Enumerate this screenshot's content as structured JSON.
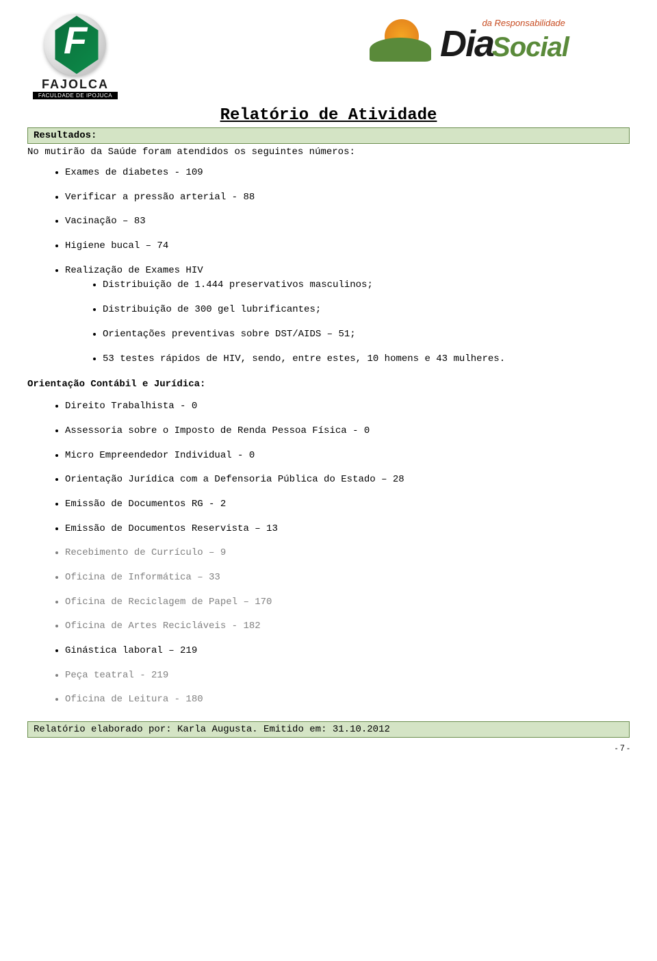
{
  "logos": {
    "fajolca_name": "FAJOLCA",
    "fajolca_sub": "FACULDADE DE IPOJUCA",
    "dia_top": "da Responsabilidade",
    "dia_main": "Dia",
    "dia_social": "Social"
  },
  "title": "Relatório de Atividade",
  "section_label": "Resultados:",
  "intro": "No mutirão da Saúde foram atendidos os seguintes números:",
  "saude_items": [
    "Exames de diabetes - 109",
    "Verificar a pressão arterial - 88",
    "Vacinação – 83",
    "Higiene bucal – 74",
    "Realização de Exames HIV"
  ],
  "hiv_sub": [
    "Distribuição de 1.444 preservativos masculinos;",
    "Distribuição de 300 gel lubrificantes;",
    "Orientações preventivas sobre DST/AIDS – 51;",
    "53 testes rápidos de HIV, sendo, entre estes, 10 homens e 43 mulheres."
  ],
  "sub_heading": "Orientação Contábil e Jurídica:",
  "second_list": [
    {
      "text": "Direito Trabalhista - 0",
      "gray": false
    },
    {
      "text": "Assessoria sobre o Imposto de Renda Pessoa Física - 0",
      "gray": false
    },
    {
      "text": "Micro Empreendedor Individual - 0",
      "gray": false
    },
    {
      "text": "Orientação Jurídica com a Defensoria Pública do Estado – 28",
      "gray": false
    },
    {
      "text": "Emissão de Documentos RG - 2",
      "gray": false
    },
    {
      "text": "Emissão de Documentos Reservista – 13",
      "gray": false
    },
    {
      "text": "Recebimento de Currículo – 9",
      "gray": true
    },
    {
      "text": "Oficina de Informática – 33",
      "gray": true
    },
    {
      "text": "Oficina de Reciclagem de Papel – 170",
      "gray": true
    },
    {
      "text": "Oficina de Artes Recicláveis - 182",
      "gray": true
    },
    {
      "text": "Ginástica laboral – 219",
      "gray": false
    },
    {
      "text": "Peça teatral - 219",
      "gray": true
    },
    {
      "text": "Oficina de Leitura - 180",
      "gray": true
    }
  ],
  "footer": "Relatório elaborado por: Karla Augusta. Emitido em: 31.10.2012",
  "page_num": "- 7 -",
  "colors": {
    "box_bg": "#d4e4c5",
    "box_border": "#6b8e4e",
    "gray_text": "#808080",
    "green_brand": "#5a8a3a",
    "orange_brand": "#c74a1f"
  }
}
